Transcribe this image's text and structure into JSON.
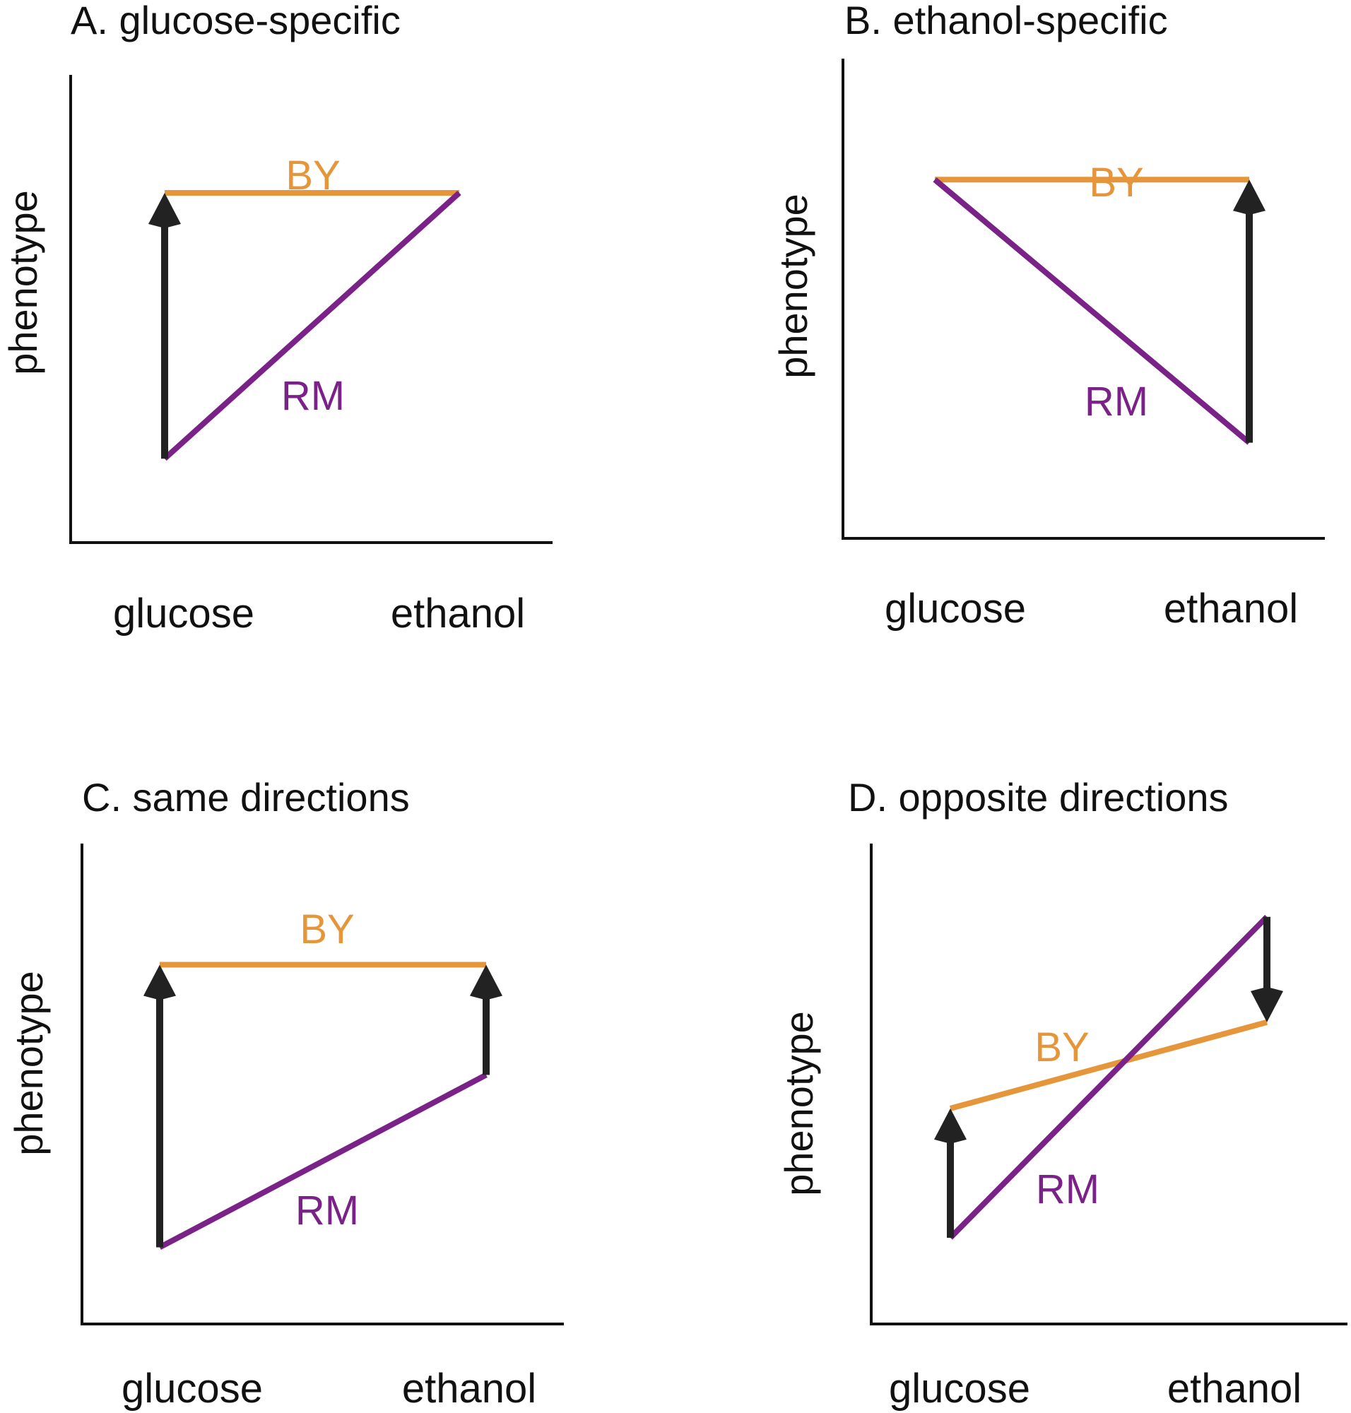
{
  "colors": {
    "by": "#E6963A",
    "rm": "#7A2288",
    "arrow": "#222222"
  },
  "panels": [
    {
      "title": "A. glucose-specific",
      "y_axis_label": "phenotype",
      "x_tick_labels": [
        "glucose",
        "ethanol"
      ],
      "by_label": "BY",
      "rm_label": "RM",
      "by_values": {
        "glucose": 0.75,
        "ethanol": 0.75
      },
      "rm_values": {
        "glucose": 0.18,
        "ethanol": 0.75
      },
      "arrows": [
        {
          "at": "glucose",
          "from": 0.18,
          "to": 0.75
        }
      ]
    },
    {
      "title": "B. ethanol-specific",
      "y_axis_label": "phenotype",
      "x_tick_labels": [
        "glucose",
        "ethanol"
      ],
      "by_label": "BY",
      "rm_label": "RM",
      "by_values": {
        "glucose": 0.75,
        "ethanol": 0.75
      },
      "rm_values": {
        "glucose": 0.75,
        "ethanol": 0.2
      },
      "arrows": [
        {
          "at": "ethanol",
          "from": 0.2,
          "to": 0.75
        }
      ]
    },
    {
      "title": "C. same directions",
      "y_axis_label": "phenotype",
      "x_tick_labels": [
        "glucose",
        "ethanol"
      ],
      "by_label": "BY",
      "rm_label": "RM",
      "by_values": {
        "glucose": 0.75,
        "ethanol": 0.75
      },
      "rm_values": {
        "glucose": 0.16,
        "ethanol": 0.52
      },
      "arrows": [
        {
          "at": "glucose",
          "from": 0.16,
          "to": 0.75
        },
        {
          "at": "ethanol",
          "from": 0.52,
          "to": 0.75
        }
      ]
    },
    {
      "title": "D. opposite directions",
      "y_axis_label": "phenotype",
      "x_tick_labels": [
        "glucose",
        "ethanol"
      ],
      "by_label": "BY",
      "rm_label": "RM",
      "by_values": {
        "glucose": 0.45,
        "ethanol": 0.63
      },
      "rm_values": {
        "glucose": 0.18,
        "ethanol": 0.85
      },
      "arrows": [
        {
          "at": "glucose",
          "from": 0.18,
          "to": 0.45
        },
        {
          "at": "ethanol",
          "from": 0.85,
          "to": 0.63
        }
      ]
    }
  ]
}
